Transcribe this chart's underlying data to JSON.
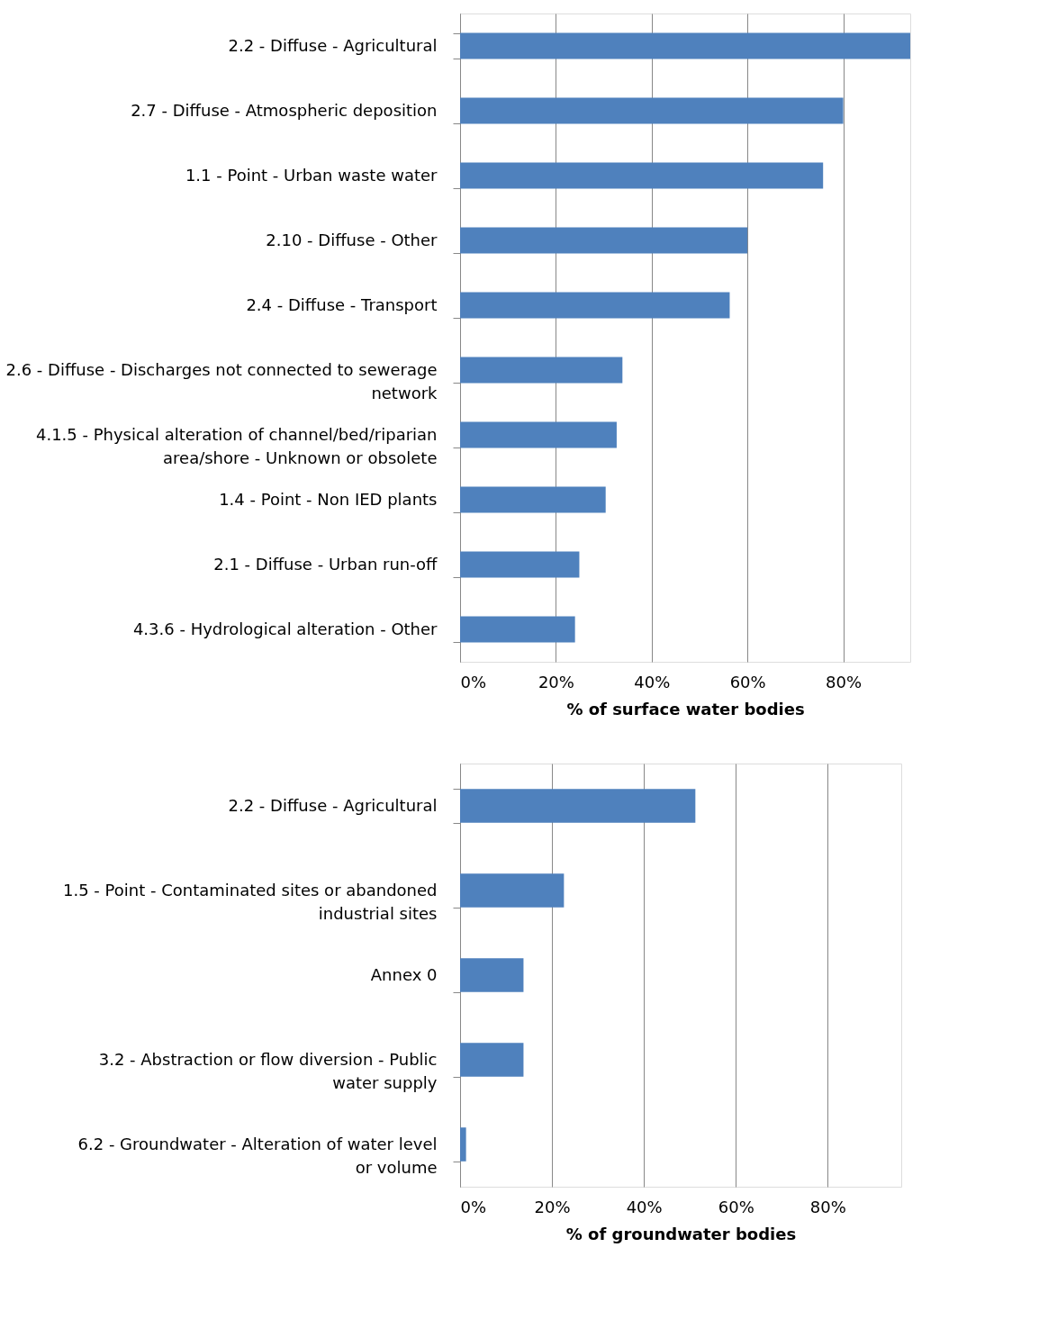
{
  "chart_data": [
    {
      "type": "bar",
      "orientation": "horizontal",
      "xlabel": "% of surface water bodies",
      "categories": [
        "2.2 - Diffuse - Agricultural",
        "2.7 - Diffuse - Atmospheric deposition",
        "1.1 - Point - Urban waste water",
        "2.10 - Diffuse - Other",
        "2.4 - Diffuse - Transport",
        "2.6 - Diffuse - Discharges not connected to sewerage network",
        "4.1.5 - Physical alteration of channel/bed/riparian area/shore - Unknown or obsolete",
        "1.4 - Point - Non IED plants",
        "2.1 - Diffuse - Urban run-off",
        "4.3.6 - Hydrological alteration - Other"
      ],
      "values": [
        94,
        80.0,
        75.8,
        60.0,
        56.3,
        33.9,
        32.7,
        30.4,
        24.9,
        24.0
      ],
      "color": "#4f81bd",
      "xlim": [
        0,
        94
      ],
      "xticks": [
        {
          "value": 0,
          "label": "0%"
        },
        {
          "value": 20,
          "label": "20%"
        },
        {
          "value": 40,
          "label": "40%"
        },
        {
          "value": 60,
          "label": "60%"
        },
        {
          "value": 80,
          "label": "80%"
        }
      ],
      "grid": "x"
    },
    {
      "type": "bar",
      "orientation": "horizontal",
      "xlabel": "% of groundwater bodies",
      "categories": [
        "2.2 - Diffuse - Agricultural",
        "1.5 - Point - Contaminated sites or abandoned industrial sites",
        "Annex 0",
        "3.2 - Abstraction or flow diversion - Public water supply",
        "6.2 - Groundwater - Alteration of water level or volume"
      ],
      "values": [
        51.2,
        22.6,
        13.8,
        13.8,
        1.3
      ],
      "color": "#4f81bd",
      "xlim": [
        0,
        96
      ],
      "xticks": [
        {
          "value": 0,
          "label": "0%"
        },
        {
          "value": 20,
          "label": "20%"
        },
        {
          "value": 40,
          "label": "40%"
        },
        {
          "value": 60,
          "label": "60%"
        },
        {
          "value": 80,
          "label": "80%"
        }
      ],
      "grid": "x"
    }
  ]
}
